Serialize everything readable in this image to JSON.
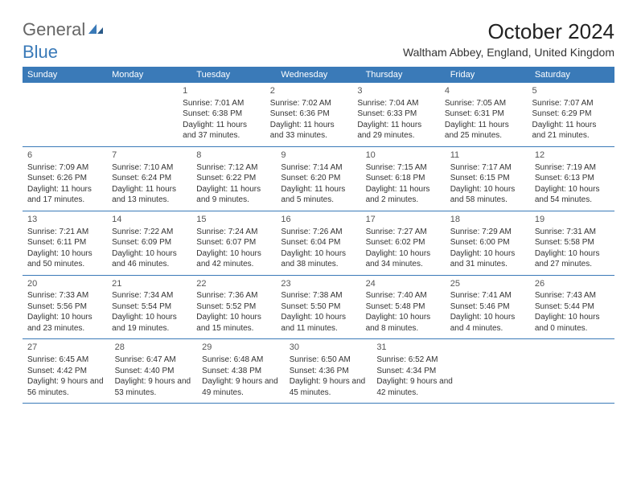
{
  "logo": {
    "text1": "General",
    "text2": "Blue"
  },
  "title": "October 2024",
  "subtitle": "Waltham Abbey, England, United Kingdom",
  "colors": {
    "header_bg": "#3a7ab8",
    "header_text": "#ffffff",
    "border": "#3a7ab8",
    "title_color": "#222",
    "text_color": "#333",
    "logo_gray": "#666",
    "logo_blue": "#3a7ab8"
  },
  "day_headers": [
    "Sunday",
    "Monday",
    "Tuesday",
    "Wednesday",
    "Thursday",
    "Friday",
    "Saturday"
  ],
  "weeks": [
    [
      null,
      null,
      {
        "n": "1",
        "sunrise": "7:01 AM",
        "sunset": "6:38 PM",
        "daylight": "11 hours and 37 minutes."
      },
      {
        "n": "2",
        "sunrise": "7:02 AM",
        "sunset": "6:36 PM",
        "daylight": "11 hours and 33 minutes."
      },
      {
        "n": "3",
        "sunrise": "7:04 AM",
        "sunset": "6:33 PM",
        "daylight": "11 hours and 29 minutes."
      },
      {
        "n": "4",
        "sunrise": "7:05 AM",
        "sunset": "6:31 PM",
        "daylight": "11 hours and 25 minutes."
      },
      {
        "n": "5",
        "sunrise": "7:07 AM",
        "sunset": "6:29 PM",
        "daylight": "11 hours and 21 minutes."
      }
    ],
    [
      {
        "n": "6",
        "sunrise": "7:09 AM",
        "sunset": "6:26 PM",
        "daylight": "11 hours and 17 minutes."
      },
      {
        "n": "7",
        "sunrise": "7:10 AM",
        "sunset": "6:24 PM",
        "daylight": "11 hours and 13 minutes."
      },
      {
        "n": "8",
        "sunrise": "7:12 AM",
        "sunset": "6:22 PM",
        "daylight": "11 hours and 9 minutes."
      },
      {
        "n": "9",
        "sunrise": "7:14 AM",
        "sunset": "6:20 PM",
        "daylight": "11 hours and 5 minutes."
      },
      {
        "n": "10",
        "sunrise": "7:15 AM",
        "sunset": "6:18 PM",
        "daylight": "11 hours and 2 minutes."
      },
      {
        "n": "11",
        "sunrise": "7:17 AM",
        "sunset": "6:15 PM",
        "daylight": "10 hours and 58 minutes."
      },
      {
        "n": "12",
        "sunrise": "7:19 AM",
        "sunset": "6:13 PM",
        "daylight": "10 hours and 54 minutes."
      }
    ],
    [
      {
        "n": "13",
        "sunrise": "7:21 AM",
        "sunset": "6:11 PM",
        "daylight": "10 hours and 50 minutes."
      },
      {
        "n": "14",
        "sunrise": "7:22 AM",
        "sunset": "6:09 PM",
        "daylight": "10 hours and 46 minutes."
      },
      {
        "n": "15",
        "sunrise": "7:24 AM",
        "sunset": "6:07 PM",
        "daylight": "10 hours and 42 minutes."
      },
      {
        "n": "16",
        "sunrise": "7:26 AM",
        "sunset": "6:04 PM",
        "daylight": "10 hours and 38 minutes."
      },
      {
        "n": "17",
        "sunrise": "7:27 AM",
        "sunset": "6:02 PM",
        "daylight": "10 hours and 34 minutes."
      },
      {
        "n": "18",
        "sunrise": "7:29 AM",
        "sunset": "6:00 PM",
        "daylight": "10 hours and 31 minutes."
      },
      {
        "n": "19",
        "sunrise": "7:31 AM",
        "sunset": "5:58 PM",
        "daylight": "10 hours and 27 minutes."
      }
    ],
    [
      {
        "n": "20",
        "sunrise": "7:33 AM",
        "sunset": "5:56 PM",
        "daylight": "10 hours and 23 minutes."
      },
      {
        "n": "21",
        "sunrise": "7:34 AM",
        "sunset": "5:54 PM",
        "daylight": "10 hours and 19 minutes."
      },
      {
        "n": "22",
        "sunrise": "7:36 AM",
        "sunset": "5:52 PM",
        "daylight": "10 hours and 15 minutes."
      },
      {
        "n": "23",
        "sunrise": "7:38 AM",
        "sunset": "5:50 PM",
        "daylight": "10 hours and 11 minutes."
      },
      {
        "n": "24",
        "sunrise": "7:40 AM",
        "sunset": "5:48 PM",
        "daylight": "10 hours and 8 minutes."
      },
      {
        "n": "25",
        "sunrise": "7:41 AM",
        "sunset": "5:46 PM",
        "daylight": "10 hours and 4 minutes."
      },
      {
        "n": "26",
        "sunrise": "7:43 AM",
        "sunset": "5:44 PM",
        "daylight": "10 hours and 0 minutes."
      }
    ],
    [
      {
        "n": "27",
        "sunrise": "6:45 AM",
        "sunset": "4:42 PM",
        "daylight": "9 hours and 56 minutes."
      },
      {
        "n": "28",
        "sunrise": "6:47 AM",
        "sunset": "4:40 PM",
        "daylight": "9 hours and 53 minutes."
      },
      {
        "n": "29",
        "sunrise": "6:48 AM",
        "sunset": "4:38 PM",
        "daylight": "9 hours and 49 minutes."
      },
      {
        "n": "30",
        "sunrise": "6:50 AM",
        "sunset": "4:36 PM",
        "daylight": "9 hours and 45 minutes."
      },
      {
        "n": "31",
        "sunrise": "6:52 AM",
        "sunset": "4:34 PM",
        "daylight": "9 hours and 42 minutes."
      },
      null,
      null
    ]
  ],
  "labels": {
    "sunrise_prefix": "Sunrise: ",
    "sunset_prefix": "Sunset: ",
    "daylight_prefix": "Daylight: "
  }
}
